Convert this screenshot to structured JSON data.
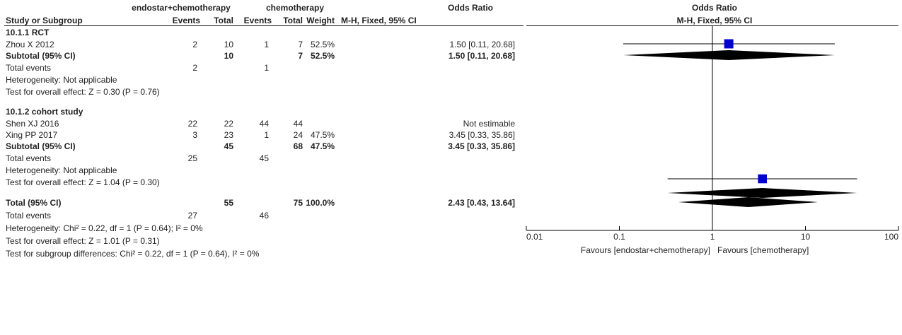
{
  "headers": {
    "group1": "endostar+chemotherapy",
    "group2": "chemotherapy",
    "or_table": "Odds Ratio",
    "or_table_method": "M-H, Fixed, 95% CI",
    "or_plot": "Odds Ratio",
    "or_plot_method": "M-H, Fixed, 95% CI",
    "study": "Study or Subgroup",
    "events1": "Events",
    "total1": "Total",
    "events2": "Events",
    "total2": "Total",
    "weight": "Weight"
  },
  "subgroup1": {
    "title": "10.1.1 RCT",
    "rows": [
      {
        "study": "Zhou X 2012",
        "e1": "2",
        "t1": "10",
        "e2": "1",
        "t2": "7",
        "weight": "52.5%",
        "ci": "1.50 [0.11, 20.68]"
      }
    ],
    "subtotal": {
      "label": "Subtotal (95% CI)",
      "t1": "10",
      "t2": "7",
      "weight": "52.5%",
      "ci": "1.50 [0.11, 20.68]"
    },
    "total_events": {
      "label": "Total events",
      "e1": "2",
      "e2": "1"
    },
    "heterogeneity": "Heterogeneity: Not applicable",
    "overall_effect": "Test for overall effect: Z = 0.30 (P = 0.76)"
  },
  "subgroup2": {
    "title": "10.1.2 cohort study",
    "rows": [
      {
        "study": "Shen XJ 2016",
        "e1": "22",
        "t1": "22",
        "e2": "44",
        "t2": "44",
        "weight": "",
        "ci": "Not estimable"
      },
      {
        "study": "Xing PP 2017",
        "e1": "3",
        "t1": "23",
        "e2": "1",
        "t2": "24",
        "weight": "47.5%",
        "ci": "3.45 [0.33, 35.86]"
      }
    ],
    "subtotal": {
      "label": "Subtotal (95% CI)",
      "t1": "45",
      "t2": "68",
      "weight": "47.5%",
      "ci": "3.45 [0.33, 35.86]"
    },
    "total_events": {
      "label": "Total events",
      "e1": "25",
      "e2": "45"
    },
    "heterogeneity": "Heterogeneity: Not applicable",
    "overall_effect": "Test for overall effect: Z = 1.04 (P = 0.30)"
  },
  "total": {
    "label": "Total (95% CI)",
    "t1": "55",
    "t2": "75",
    "weight": "100.0%",
    "ci": "2.43 [0.43, 13.64]",
    "events_label": "Total events",
    "e1": "27",
    "e2": "46",
    "heterogeneity": "Heterogeneity: Chi² = 0.22, df = 1 (P = 0.64); I² = 0%",
    "overall_effect": "Test for overall effect: Z = 1.01 (P = 0.31)",
    "subgroup_diff": "Test for subgroup differences: Chi² = 0.22, df = 1 (P = 0.64), I² = 0%"
  },
  "axis": {
    "favours_left": "Favours [endostar+chemotherapy]",
    "favours_right": "Favours [chemotherapy]"
  },
  "colors": {
    "square": "#0000cc",
    "diamond": "#000000",
    "line": "#000000"
  },
  "chart_data": {
    "type": "forest",
    "scale": "log",
    "xlim": [
      0.01,
      100
    ],
    "ticks": [
      0.01,
      0.1,
      1,
      10,
      100
    ],
    "tick_labels": [
      "0.01",
      "0.1",
      "1",
      "10",
      "100"
    ],
    "null_value": 1,
    "studies": [
      {
        "name": "Zhou X 2012",
        "or": 1.5,
        "lo": 0.11,
        "hi": 20.68,
        "weight": 52.5
      },
      {
        "name": "Xing PP 2017",
        "or": 3.45,
        "lo": 0.33,
        "hi": 35.86,
        "weight": 47.5
      }
    ],
    "diamonds": [
      {
        "name": "Subtotal 10.1.1 RCT",
        "or": 1.5,
        "lo": 0.11,
        "hi": 20.68
      },
      {
        "name": "Subtotal 10.1.2 cohort study",
        "or": 3.45,
        "lo": 0.33,
        "hi": 35.86
      },
      {
        "name": "Total (95% CI)",
        "or": 2.43,
        "lo": 0.43,
        "hi": 13.64
      }
    ]
  }
}
